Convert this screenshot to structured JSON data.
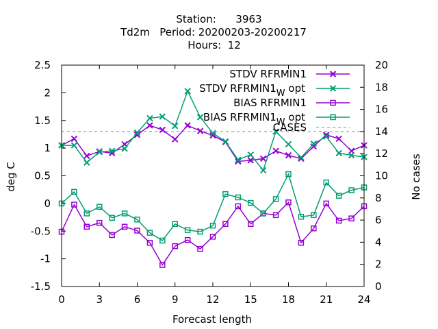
{
  "chart_data": {
    "type": "line",
    "title_lines": [
      "Station:      3963",
      "Td2m   Period: 20200203-20200217",
      "Hours:  12"
    ],
    "xlabel": "Forecast length",
    "ylabel": "deg C",
    "y2label": "No cases",
    "xlim": [
      0,
      24
    ],
    "ylim": [
      -1.5,
      2.5
    ],
    "y2lim": [
      0,
      20
    ],
    "xticks": [
      "0",
      "3",
      "6",
      "9",
      "12",
      "15",
      "18",
      "21",
      "24"
    ],
    "yticks": [
      "-1.5",
      "-1",
      "-0.5",
      "0",
      "0.5",
      "1",
      "1.5",
      "2",
      "2.5"
    ],
    "y2ticks": [
      "0",
      "2",
      "4",
      "6",
      "8",
      "10",
      "12",
      "14",
      "16",
      "18",
      "20"
    ],
    "x": [
      0,
      1,
      2,
      3,
      4,
      5,
      6,
      7,
      8,
      9,
      10,
      11,
      12,
      13,
      14,
      15,
      16,
      17,
      18,
      19,
      20,
      21,
      22,
      23,
      24
    ],
    "series": [
      {
        "name": "STDV RFRMIN1",
        "legend_main": "STDV RFRMIN1",
        "legend_sub": "",
        "legend_tail": "",
        "color": "#9400d3",
        "marker": "x",
        "values": [
          1.05,
          1.17,
          0.86,
          0.94,
          0.91,
          1.07,
          1.24,
          1.41,
          1.33,
          1.16,
          1.41,
          1.31,
          1.23,
          1.11,
          0.76,
          0.78,
          0.81,
          0.95,
          0.87,
          0.81,
          1.03,
          1.24,
          1.17,
          0.95,
          1.05
        ]
      },
      {
        "name": "STDV RFRMIN1_W opt",
        "legend_main": "STDV RFRMIN1",
        "legend_sub": "W",
        "legend_tail": "opt",
        "color": "#009e73",
        "marker": "x",
        "values": [
          1.05,
          1.05,
          0.74,
          0.93,
          0.95,
          0.99,
          1.28,
          1.54,
          1.57,
          1.4,
          2.03,
          1.56,
          1.27,
          1.12,
          0.79,
          0.88,
          0.6,
          1.3,
          1.07,
          0.83,
          1.08,
          1.21,
          0.91,
          0.87,
          0.84
        ]
      },
      {
        "name": "BIAS RFRMIN1",
        "legend_main": "BIAS RFRMIN1",
        "legend_sub": "",
        "legend_tail": "",
        "color": "#9400d3",
        "marker": "square",
        "values": [
          -0.51,
          -0.02,
          -0.42,
          -0.35,
          -0.57,
          -0.42,
          -0.49,
          -0.71,
          -1.11,
          -0.77,
          -0.66,
          -0.82,
          -0.6,
          -0.37,
          -0.05,
          -0.37,
          -0.18,
          -0.21,
          0.02,
          -0.71,
          -0.45,
          0.0,
          -0.31,
          -0.27,
          -0.05
        ]
      },
      {
        "name": "BIAS RFRMIN1_W opt",
        "legend_main": "BIAS RFRMIN1",
        "legend_sub": "W",
        "legend_tail": "opt",
        "color": "#009e73",
        "marker": "square",
        "values": [
          0.0,
          0.21,
          -0.18,
          -0.06,
          -0.26,
          -0.18,
          -0.29,
          -0.53,
          -0.67,
          -0.37,
          -0.48,
          -0.51,
          -0.4,
          0.17,
          0.11,
          0.01,
          -0.18,
          0.08,
          0.53,
          -0.24,
          -0.21,
          0.38,
          0.14,
          0.24,
          0.29
        ]
      }
    ],
    "cases": {
      "name": "CASES",
      "value": 14,
      "color": "#a0a0a0",
      "axis": "y2",
      "style": "dashed"
    },
    "legend_position": "top-right"
  }
}
